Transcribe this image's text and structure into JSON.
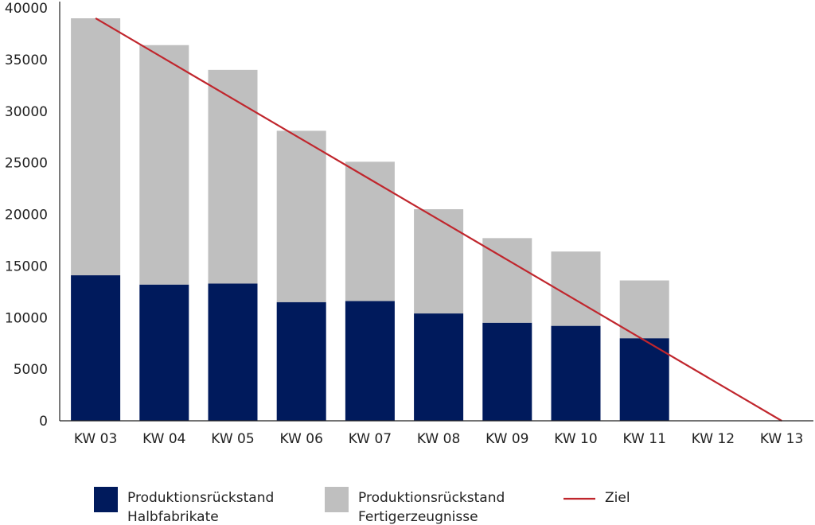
{
  "chart_data": {
    "type": "bar",
    "stacked": true,
    "categories": [
      "KW 03",
      "KW 04",
      "KW 05",
      "KW 06",
      "KW 07",
      "KW 08",
      "KW 09",
      "KW 10",
      "KW 11",
      "KW 12",
      "KW 13"
    ],
    "series": [
      {
        "name": "Produktionsrückstand Halbfabrikate",
        "color": "#001a5c",
        "values": [
          14100,
          13200,
          13300,
          11500,
          11600,
          10400,
          9500,
          9200,
          8000,
          0,
          0
        ]
      },
      {
        "name": "Produktionsrückstand Fertigerzeugnisse",
        "color": "#bfbfbf",
        "values": [
          24900,
          23200,
          20700,
          16600,
          13500,
          10100,
          8200,
          7200,
          5600,
          0,
          0
        ]
      }
    ],
    "line": {
      "name": "Ziel",
      "color": "#c0262d",
      "values": [
        39000,
        35100,
        31200,
        27300,
        23400,
        19500,
        15600,
        11700,
        7800,
        3900,
        0
      ]
    },
    "ylim": [
      0,
      40000
    ],
    "yticks": [
      "0",
      "5000",
      "10000",
      "15000",
      "20000",
      "25000",
      "30000",
      "35000",
      "40000"
    ],
    "title": "",
    "xlabel": "",
    "ylabel": "",
    "grid": false,
    "legend_position": "bottom",
    "legend": [
      {
        "lines": [
          "Produktionsrückstand",
          "Halbfabrikate"
        ],
        "color": "#001a5c",
        "kind": "box"
      },
      {
        "lines": [
          "Produktionsrückstand",
          "Fertigerzeugnisse"
        ],
        "color": "#bfbfbf",
        "kind": "box"
      },
      {
        "lines": [
          "Ziel"
        ],
        "color": "#c0262d",
        "kind": "line"
      }
    ]
  }
}
